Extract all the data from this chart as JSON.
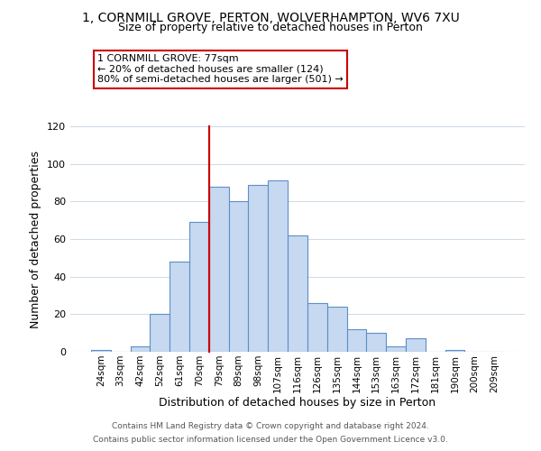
{
  "title": "1, CORNMILL GROVE, PERTON, WOLVERHAMPTON, WV6 7XU",
  "subtitle": "Size of property relative to detached houses in Perton",
  "xlabel": "Distribution of detached houses by size in Perton",
  "ylabel": "Number of detached properties",
  "bar_labels": [
    "24sqm",
    "33sqm",
    "42sqm",
    "52sqm",
    "61sqm",
    "70sqm",
    "79sqm",
    "89sqm",
    "98sqm",
    "107sqm",
    "116sqm",
    "126sqm",
    "135sqm",
    "144sqm",
    "153sqm",
    "163sqm",
    "172sqm",
    "181sqm",
    "190sqm",
    "200sqm",
    "209sqm"
  ],
  "bar_values": [
    1,
    0,
    3,
    20,
    48,
    69,
    88,
    80,
    89,
    91,
    62,
    26,
    24,
    12,
    10,
    3,
    7,
    0,
    1,
    0,
    0
  ],
  "bar_color": "#c6d9f0",
  "bar_edge_color": "#5b8fc9",
  "ylim": [
    0,
    120
  ],
  "yticks": [
    0,
    20,
    40,
    60,
    80,
    100,
    120
  ],
  "vline_index": 6,
  "vline_color": "#cc0000",
  "annotation_title": "1 CORNMILL GROVE: 77sqm",
  "annotation_line1": "← 20% of detached houses are smaller (124)",
  "annotation_line2": "80% of semi-detached houses are larger (501) →",
  "annotation_box_color": "#ffffff",
  "annotation_box_edge": "#cc0000",
  "footer1": "Contains HM Land Registry data © Crown copyright and database right 2024.",
  "footer2": "Contains public sector information licensed under the Open Government Licence v3.0.",
  "background_color": "#ffffff",
  "grid_color": "#d0dce8"
}
